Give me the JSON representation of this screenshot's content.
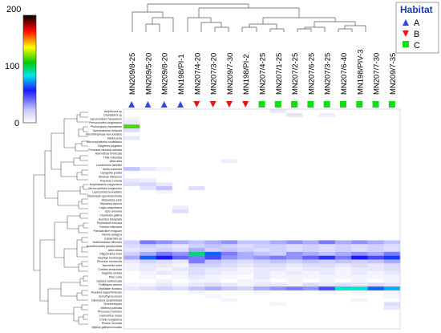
{
  "chart_data": {
    "type": "heatmap",
    "title": "",
    "color_scale": {
      "ticks": [
        0,
        100,
        200
      ],
      "max": 200,
      "stops": [
        "#ffffff",
        "#1a1aff",
        "#00e6e6",
        "#00cc00",
        "#ffff00",
        "#ff0000",
        "#000000"
      ]
    },
    "legend": {
      "title": "Habitat",
      "entries": [
        {
          "label": "A",
          "shape": "triangle-up",
          "color": "#3344ee"
        },
        {
          "label": "B",
          "shape": "triangle-down",
          "color": "#ee1111"
        },
        {
          "label": "C",
          "shape": "square",
          "color": "#11dd11"
        }
      ]
    },
    "columns": [
      "MN209/8-25",
      "MN209/5-20",
      "MN209/8-20",
      "MN198/PI-1",
      "MN207/4-20",
      "MN207/3-20",
      "MN209/7-30",
      "MN198/PI-2",
      "MN207/4-25",
      "MN207/1-25",
      "MN207/2-25",
      "MN207/6-25",
      "MN207/3-25",
      "MN207/6-40",
      "MN198/PIV-3",
      "MN207/7-30",
      "MN209/7-35"
    ],
    "column_habitat": [
      "A",
      "A",
      "A",
      "A",
      "B",
      "B",
      "B",
      "B",
      "C",
      "C",
      "C",
      "C",
      "C",
      "C",
      "C",
      "C",
      "C"
    ],
    "rows": [
      "Amphicora sp",
      "Cephalotrix sp",
      "Syncholidium hanseikum",
      "Pericoccodes longimanus",
      "Phoronopsis mariosellae",
      "Spirorbanchus freiparti",
      "Microthelphusa verruculatus",
      "Mysta picta",
      "Micromphalimus scutellatus",
      "Diogenes pugilator",
      "Processa robusta carinata",
      "Harmothoe imbricata",
      "Trilla reticulata",
      "Abra alba",
      "Lumbrineris latreillei",
      "Aiella succinea",
      "Upogebia pusilla",
      "Athanas nitescens",
      "Polydora cornuta",
      "Amphiaraeus enyponicus",
      "Microcophthea longicornis",
      "Leptochelia bonnellaris",
      "Streblospio gynobranchiata",
      "Ampelisca sarsi",
      "Stylochus taurica",
      "Lagis neapolitana",
      "Spio arenaria",
      "Chamelea gallina",
      "Aonides tetraplata",
      "Phyllodoce mucosa",
      "Retusa rolleciana",
      "Parvicardium exiguum",
      "Nereis pelagica",
      "Edwardsia sp",
      "Heteromastus filiformis",
      "Acanthocardia paucicostata",
      "Abra nitida",
      "Oligochaeta indet",
      "Nephtys hombergii",
      "Phoronis euxinicola",
      "Nemertini indet",
      "Caridea lenticulata",
      "Sagartia undata",
      "Pilar curta",
      "Spisula subtruncata",
      "Polititapes aureus",
      "Mytilaster lineatus",
      "Anadara kagoshimensis",
      "Gonothyrea loveni",
      "Dipolydora quadrilobata",
      "Tenebrellopsis",
      "Melinna palmata",
      "Phoxonus horridus",
      "Harmothoe impar",
      "Chelis longissima",
      "Pholoe inornata",
      "Mytilus galloprovincialis"
    ],
    "values": [
      [
        0,
        0,
        0,
        0,
        0,
        0,
        0,
        0,
        0,
        10,
        0,
        0,
        0,
        0,
        0,
        0,
        0
      ],
      [
        0,
        0,
        0,
        0,
        0,
        0,
        0,
        0,
        0,
        0,
        12,
        0,
        8,
        0,
        0,
        0,
        0
      ],
      [
        5,
        0,
        0,
        0,
        0,
        0,
        0,
        0,
        0,
        0,
        0,
        0,
        0,
        0,
        0,
        0,
        0
      ],
      [
        10,
        0,
        0,
        0,
        0,
        0,
        0,
        0,
        0,
        0,
        0,
        0,
        0,
        0,
        0,
        0,
        0
      ],
      [
        120,
        0,
        0,
        0,
        0,
        0,
        0,
        0,
        0,
        0,
        0,
        0,
        0,
        0,
        0,
        0,
        0
      ],
      [
        15,
        0,
        0,
        0,
        0,
        0,
        0,
        0,
        0,
        0,
        0,
        0,
        0,
        0,
        0,
        0,
        0
      ],
      [
        0,
        0,
        0,
        0,
        0,
        0,
        0,
        0,
        0,
        0,
        0,
        0,
        0,
        0,
        0,
        0,
        0
      ],
      [
        10,
        0,
        0,
        0,
        0,
        0,
        0,
        0,
        0,
        0,
        0,
        0,
        0,
        0,
        0,
        0,
        0
      ],
      [
        0,
        0,
        0,
        0,
        0,
        0,
        0,
        0,
        0,
        0,
        0,
        0,
        0,
        0,
        0,
        0,
        0
      ],
      [
        0,
        0,
        0,
        0,
        0,
        0,
        0,
        0,
        0,
        0,
        0,
        0,
        0,
        0,
        0,
        0,
        0
      ],
      [
        0,
        0,
        0,
        0,
        0,
        0,
        0,
        0,
        0,
        0,
        0,
        0,
        0,
        0,
        0,
        0,
        0
      ],
      [
        0,
        0,
        0,
        0,
        0,
        0,
        0,
        0,
        0,
        0,
        0,
        0,
        0,
        0,
        0,
        0,
        0
      ],
      [
        0,
        0,
        0,
        0,
        0,
        0,
        0,
        0,
        0,
        0,
        0,
        0,
        0,
        0,
        0,
        0,
        0
      ],
      [
        0,
        0,
        0,
        0,
        0,
        0,
        8,
        0,
        0,
        0,
        0,
        0,
        0,
        0,
        0,
        0,
        0
      ],
      [
        0,
        0,
        0,
        0,
        0,
        0,
        0,
        0,
        0,
        0,
        0,
        0,
        0,
        0,
        0,
        0,
        0
      ],
      [
        25,
        10,
        5,
        0,
        0,
        0,
        0,
        0,
        0,
        0,
        0,
        0,
        0,
        0,
        0,
        0,
        0
      ],
      [
        0,
        0,
        0,
        0,
        0,
        0,
        0,
        0,
        0,
        0,
        0,
        0,
        0,
        0,
        0,
        0,
        0
      ],
      [
        0,
        0,
        0,
        0,
        0,
        0,
        0,
        0,
        0,
        0,
        0,
        0,
        0,
        0,
        0,
        0,
        0
      ],
      [
        10,
        8,
        0,
        0,
        0,
        0,
        0,
        0,
        0,
        0,
        0,
        0,
        0,
        0,
        0,
        0,
        0
      ],
      [
        15,
        18,
        10,
        0,
        0,
        0,
        0,
        0,
        0,
        0,
        0,
        0,
        0,
        0,
        0,
        0,
        0
      ],
      [
        0,
        12,
        25,
        0,
        15,
        0,
        0,
        0,
        0,
        0,
        0,
        0,
        0,
        0,
        0,
        0,
        0
      ],
      [
        0,
        0,
        5,
        0,
        0,
        0,
        0,
        0,
        0,
        0,
        0,
        0,
        0,
        0,
        0,
        0,
        0
      ],
      [
        0,
        0,
        0,
        0,
        0,
        0,
        0,
        0,
        0,
        0,
        0,
        0,
        0,
        0,
        0,
        0,
        0
      ],
      [
        0,
        0,
        0,
        0,
        0,
        0,
        0,
        0,
        0,
        0,
        0,
        0,
        0,
        0,
        0,
        0,
        0
      ],
      [
        0,
        0,
        0,
        0,
        0,
        0,
        0,
        0,
        0,
        0,
        0,
        0,
        0,
        0,
        0,
        0,
        0
      ],
      [
        0,
        0,
        0,
        8,
        0,
        0,
        0,
        0,
        0,
        0,
        0,
        0,
        0,
        0,
        0,
        0,
        0
      ],
      [
        0,
        0,
        0,
        15,
        0,
        0,
        0,
        0,
        0,
        0,
        0,
        0,
        0,
        0,
        0,
        0,
        0
      ],
      [
        0,
        0,
        0,
        0,
        0,
        0,
        0,
        0,
        0,
        0,
        0,
        0,
        0,
        0,
        0,
        0,
        0
      ],
      [
        0,
        0,
        0,
        0,
        0,
        0,
        0,
        0,
        0,
        0,
        0,
        0,
        0,
        0,
        0,
        0,
        0
      ],
      [
        0,
        0,
        0,
        0,
        0,
        0,
        0,
        0,
        0,
        0,
        0,
        0,
        0,
        0,
        0,
        0,
        0
      ],
      [
        0,
        0,
        0,
        0,
        0,
        0,
        0,
        0,
        0,
        0,
        0,
        0,
        0,
        0,
        0,
        0,
        0
      ],
      [
        0,
        0,
        0,
        0,
        0,
        0,
        0,
        0,
        0,
        0,
        0,
        0,
        0,
        0,
        0,
        0,
        0
      ],
      [
        0,
        0,
        0,
        0,
        0,
        0,
        0,
        0,
        0,
        0,
        0,
        0,
        0,
        0,
        0,
        0,
        0
      ],
      [
        0,
        0,
        0,
        0,
        0,
        0,
        0,
        0,
        0,
        0,
        0,
        0,
        0,
        0,
        0,
        0,
        0
      ],
      [
        20,
        40,
        35,
        30,
        25,
        30,
        35,
        25,
        25,
        30,
        35,
        30,
        40,
        30,
        35,
        30,
        25
      ],
      [
        15,
        20,
        15,
        10,
        20,
        25,
        20,
        15,
        20,
        20,
        15,
        20,
        15,
        20,
        15,
        20,
        15
      ],
      [
        10,
        15,
        20,
        15,
        30,
        20,
        25,
        20,
        15,
        20,
        15,
        20,
        15,
        20,
        15,
        20,
        15
      ],
      [
        20,
        30,
        40,
        35,
        100,
        70,
        40,
        30,
        25,
        20,
        35,
        30,
        25,
        30,
        35,
        30,
        40
      ],
      [
        30,
        70,
        60,
        45,
        40,
        50,
        35,
        30,
        35,
        40,
        35,
        45,
        55,
        40,
        60,
        50,
        65
      ],
      [
        10,
        20,
        15,
        10,
        40,
        25,
        20,
        15,
        20,
        25,
        20,
        25,
        20,
        25,
        20,
        25,
        30
      ],
      [
        5,
        10,
        10,
        5,
        20,
        20,
        15,
        10,
        15,
        15,
        10,
        15,
        15,
        10,
        15,
        10,
        15
      ],
      [
        5,
        10,
        5,
        10,
        15,
        10,
        10,
        5,
        10,
        10,
        5,
        10,
        10,
        5,
        10,
        10,
        15
      ],
      [
        0,
        5,
        10,
        5,
        15,
        10,
        5,
        5,
        10,
        5,
        10,
        5,
        10,
        5,
        10,
        5,
        10
      ],
      [
        0,
        5,
        0,
        5,
        10,
        5,
        5,
        0,
        10,
        5,
        5,
        5,
        5,
        5,
        5,
        5,
        5
      ],
      [
        0,
        0,
        5,
        0,
        5,
        5,
        0,
        5,
        5,
        0,
        5,
        0,
        5,
        0,
        5,
        0,
        5
      ],
      [
        5,
        5,
        10,
        5,
        10,
        15,
        10,
        5,
        10,
        10,
        5,
        15,
        10,
        15,
        10,
        15,
        10
      ],
      [
        10,
        15,
        20,
        15,
        25,
        30,
        25,
        20,
        30,
        35,
        40,
        35,
        50,
        90,
        90,
        70,
        80
      ],
      [
        0,
        0,
        0,
        0,
        5,
        0,
        0,
        0,
        5,
        0,
        0,
        0,
        5,
        0,
        5,
        0,
        5
      ],
      [
        0,
        0,
        0,
        0,
        0,
        5,
        0,
        0,
        0,
        0,
        0,
        0,
        0,
        0,
        0,
        0,
        5
      ],
      [
        0,
        0,
        0,
        0,
        0,
        0,
        5,
        0,
        0,
        0,
        0,
        0,
        0,
        0,
        5,
        0,
        0
      ],
      [
        0,
        0,
        0,
        0,
        0,
        0,
        0,
        0,
        0,
        5,
        0,
        0,
        0,
        0,
        0,
        0,
        15
      ],
      [
        0,
        0,
        0,
        0,
        0,
        0,
        0,
        0,
        0,
        0,
        0,
        0,
        0,
        0,
        0,
        0,
        10
      ],
      [
        0,
        0,
        0,
        0,
        0,
        0,
        0,
        0,
        0,
        0,
        0,
        0,
        0,
        0,
        0,
        0,
        0
      ],
      [
        0,
        0,
        0,
        0,
        0,
        0,
        0,
        0,
        0,
        0,
        0,
        0,
        0,
        0,
        0,
        0,
        0
      ],
      [
        0,
        0,
        0,
        0,
        0,
        0,
        0,
        0,
        0,
        0,
        0,
        0,
        0,
        0,
        0,
        0,
        0
      ],
      [
        0,
        0,
        0,
        0,
        0,
        0,
        0,
        0,
        0,
        0,
        0,
        0,
        0,
        0,
        0,
        0,
        0
      ],
      [
        0,
        0,
        0,
        0,
        0,
        0,
        0,
        0,
        0,
        0,
        0,
        0,
        0,
        0,
        0,
        0,
        0
      ]
    ]
  }
}
